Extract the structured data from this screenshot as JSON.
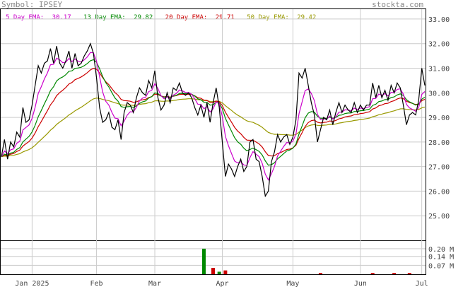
{
  "header": {
    "symbol_text": "Symbol: IPSEY",
    "site_text": "stockta.com"
  },
  "legend": [
    {
      "label": "5 Day EMA:",
      "value": "30.17",
      "color": "#cc00cc"
    },
    {
      "label": "13 Day EMA:",
      "value": "29.82",
      "color": "#008800"
    },
    {
      "label": "20 Day EMA:",
      "value": "29.71",
      "color": "#cc0000"
    },
    {
      "label": "50 Day EMA:",
      "value": "29.42",
      "color": "#999900"
    }
  ],
  "chart_data": {
    "type": "line",
    "price_axis": {
      "ylim": [
        24.0,
        33.4
      ],
      "ticks": [
        25.0,
        26.0,
        27.0,
        28.0,
        29.0,
        30.0,
        31.0,
        32.0,
        33.0
      ],
      "tick_labels": [
        "25.00",
        "26.00",
        "27.00",
        "28.00",
        "29.00",
        "30.00",
        "31.00",
        "32.00",
        "33.00"
      ]
    },
    "volume_axis": {
      "ylim": [
        0,
        0.26
      ],
      "ticks": [
        0.07,
        0.14,
        0.2
      ],
      "tick_labels": [
        "0.07 M",
        "0.14 M",
        "0.20 M"
      ]
    },
    "x_axis": {
      "categories": [
        "Jan 2025",
        "Feb",
        "Mar",
        "Apr",
        "May",
        "Jun",
        "Jul"
      ],
      "tick_index": [
        10,
        31,
        50,
        72,
        95,
        117,
        137
      ],
      "count": 139
    },
    "colors": {
      "price": "#000000",
      "ema5": "#cc00cc",
      "ema13": "#008800",
      "ema20": "#cc0000",
      "ema50": "#999900",
      "volume_up": "#008800",
      "volume_down": "#cc0000"
    },
    "series": [
      {
        "name": "Price",
        "values": [
          27.4,
          28.1,
          27.3,
          28.0,
          27.8,
          28.4,
          28.2,
          29.4,
          28.8,
          28.9,
          29.5,
          30.3,
          31.1,
          30.8,
          31.2,
          31.3,
          31.8,
          31.2,
          31.9,
          31.2,
          31.0,
          31.3,
          31.7,
          31.0,
          31.6,
          31.1,
          31.2,
          31.5,
          31.7,
          32.0,
          31.6,
          30.6,
          29.4,
          28.8,
          28.9,
          29.2,
          28.6,
          28.5,
          28.9,
          28.1,
          29.2,
          29.6,
          29.5,
          29.2,
          29.8,
          30.2,
          30.0,
          29.9,
          30.5,
          30.2,
          30.9,
          29.8,
          29.3,
          29.5,
          30.0,
          29.6,
          30.2,
          30.1,
          30.4,
          30.0,
          29.9,
          30.0,
          29.8,
          29.4,
          29.1,
          29.5,
          29.0,
          29.6,
          28.8,
          29.6,
          30.2,
          29.4,
          28.0,
          26.6,
          27.1,
          26.9,
          26.6,
          27.0,
          27.3,
          26.8,
          27.0,
          28.0,
          28.1,
          27.3,
          27.2,
          26.6,
          25.8,
          26.0,
          27.2,
          27.6,
          28.3,
          28.0,
          28.2,
          28.3,
          27.9,
          28.2,
          28.9,
          30.8,
          30.6,
          31.0,
          30.3,
          29.6,
          29.1,
          28.0,
          28.5,
          29.0,
          28.9,
          29.3,
          28.7,
          29.2,
          29.6,
          29.2,
          29.5,
          29.3,
          29.2,
          29.6,
          29.2,
          29.5,
          29.3,
          29.5,
          29.5,
          30.4,
          29.8,
          30.3,
          29.8,
          30.1,
          29.7,
          30.3,
          30.0,
          30.4,
          30.2,
          29.5,
          28.7,
          29.1,
          29.2,
          29.1,
          29.7,
          31.0,
          30.3
        ]
      },
      {
        "name": "5 Day EMA",
        "span": 5,
        "last": 30.17
      },
      {
        "name": "13 Day EMA",
        "span": 13,
        "last": 29.82
      },
      {
        "name": "20 Day EMA",
        "span": 20,
        "last": 29.71
      },
      {
        "name": "50 Day EMA",
        "span": 50,
        "last": 29.42
      }
    ],
    "volume": [
      {
        "index": 66,
        "value": 0.2,
        "direction": "up"
      },
      {
        "index": 69,
        "value": 0.05,
        "direction": "down"
      },
      {
        "index": 71,
        "value": 0.02,
        "direction": "up"
      },
      {
        "index": 73,
        "value": 0.03,
        "direction": "down"
      },
      {
        "index": 104,
        "value": 0.01,
        "direction": "down"
      },
      {
        "index": 121,
        "value": 0.01,
        "direction": "down"
      },
      {
        "index": 128,
        "value": 0.01,
        "direction": "down"
      },
      {
        "index": 133,
        "value": 0.01,
        "direction": "down"
      }
    ],
    "grid": true
  }
}
